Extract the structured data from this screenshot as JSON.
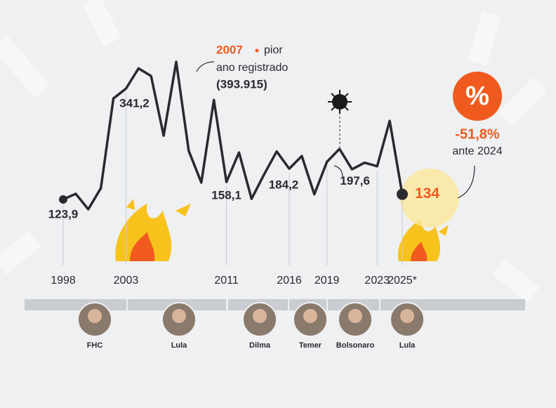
{
  "chart_data": {
    "type": "line",
    "x": [
      1998,
      1999,
      2000,
      2001,
      2002,
      2003,
      2004,
      2005,
      2006,
      2007,
      2008,
      2009,
      2010,
      2011,
      2012,
      2013,
      2014,
      2015,
      2016,
      2017,
      2018,
      2019,
      2020,
      2021,
      2022,
      2023,
      2024,
      2025
    ],
    "values": [
      123.9,
      135,
      104.6,
      146,
      322,
      341.2,
      381,
      366,
      249,
      393.9,
      219,
      157,
      319,
      158.1,
      216,
      125,
      173,
      218,
      184.2,
      209,
      134,
      197.6,
      223,
      183,
      196,
      189,
      278,
      134
    ],
    "value_labels": [
      "123,9",
      null,
      null,
      null,
      null,
      "341,2",
      null,
      null,
      null,
      null,
      null,
      null,
      null,
      "158,1",
      null,
      null,
      null,
      null,
      "184,2",
      null,
      null,
      "197,6",
      null,
      null,
      null,
      null,
      null,
      "134"
    ],
    "color": "#2a2a2e",
    "highlight_color": "#f05a1e",
    "xlim": [
      1998,
      2025
    ],
    "xticks": [
      1998,
      2003,
      2011,
      2016,
      2019,
      2023,
      {
        "value": 2025,
        "label": "2025*"
      }
    ],
    "annotation": {
      "year": "2007",
      "line1": "pior",
      "line2": "ano registrado",
      "value": "(393.915)"
    },
    "badge": {
      "icon": "%",
      "change": "-51,8%",
      "note": "ante 2024"
    },
    "presidents": [
      "FHC",
      "Lula",
      "Dilma",
      "Temer",
      "Bolsonaro",
      "Lula"
    ]
  }
}
